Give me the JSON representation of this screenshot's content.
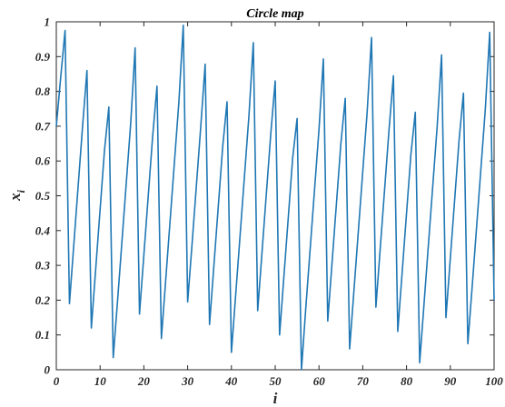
{
  "chart_data": {
    "type": "line",
    "title": "Circle map",
    "xlabel": "i",
    "ylabel": "x",
    "ylabel_subscript": "i",
    "xlim": [
      0,
      100
    ],
    "ylim": [
      0,
      1
    ],
    "xticks": [
      0,
      10,
      20,
      30,
      40,
      50,
      60,
      70,
      80,
      90,
      100
    ],
    "yticks": [
      0,
      0.1,
      0.2,
      0.3,
      0.4,
      0.5,
      0.6,
      0.7,
      0.8,
      0.9,
      1
    ],
    "xtick_labels": [
      "0",
      "10",
      "20",
      "30",
      "40",
      "50",
      "60",
      "70",
      "80",
      "90",
      "100"
    ],
    "ytick_labels": [
      "0",
      "0.1",
      "0.2",
      "0.3",
      "0.4",
      "0.5",
      "0.6",
      "0.7",
      "0.8",
      "0.9",
      "1"
    ],
    "grid": false,
    "line_color": "#1f77b4",
    "series": [
      {
        "x": [
          0,
          1,
          2,
          3,
          4,
          5,
          6,
          7,
          8,
          9,
          10,
          11,
          12,
          13,
          14,
          15,
          16,
          17,
          18,
          19,
          20,
          21,
          22,
          23,
          24,
          25,
          26,
          27,
          28,
          29,
          30,
          31,
          32,
          33,
          34,
          35,
          36,
          37,
          38,
          39,
          40,
          41,
          42,
          43,
          44,
          45,
          46,
          47,
          48,
          49,
          50,
          51,
          52,
          53,
          54,
          55,
          56,
          57,
          58,
          59,
          60,
          61,
          62,
          63,
          64,
          65,
          66,
          67,
          68,
          69,
          70,
          71,
          72,
          73,
          74,
          75,
          76,
          77,
          78,
          79,
          80,
          81,
          82,
          83,
          84,
          85,
          86,
          87,
          88,
          89,
          90,
          91,
          92,
          93,
          94,
          95,
          96,
          97,
          98,
          99,
          100
        ],
        "y": [
          0.7,
          0.84,
          0.975,
          0.19,
          0.36,
          0.53,
          0.7,
          0.86,
          0.12,
          0.29,
          0.46,
          0.63,
          0.755,
          0.035,
          0.2,
          0.37,
          0.54,
          0.71,
          0.925,
          0.16,
          0.33,
          0.5,
          0.67,
          0.815,
          0.09,
          0.26,
          0.43,
          0.6,
          0.77,
          0.99,
          0.195,
          0.36,
          0.53,
          0.7,
          0.878,
          0.13,
          0.3,
          0.47,
          0.64,
          0.77,
          0.05,
          0.22,
          0.39,
          0.56,
          0.73,
          0.94,
          0.17,
          0.34,
          0.51,
          0.68,
          0.83,
          0.1,
          0.27,
          0.44,
          0.61,
          0.722,
          0.0,
          0.18,
          0.35,
          0.52,
          0.69,
          0.893,
          0.14,
          0.31,
          0.48,
          0.65,
          0.78,
          0.06,
          0.23,
          0.4,
          0.57,
          0.74,
          0.955,
          0.18,
          0.35,
          0.52,
          0.69,
          0.845,
          0.11,
          0.28,
          0.45,
          0.62,
          0.74,
          0.02,
          0.19,
          0.36,
          0.53,
          0.7,
          0.905,
          0.15,
          0.32,
          0.49,
          0.66,
          0.795,
          0.075,
          0.24,
          0.41,
          0.58,
          0.75,
          0.97,
          0.2
        ]
      }
    ]
  }
}
